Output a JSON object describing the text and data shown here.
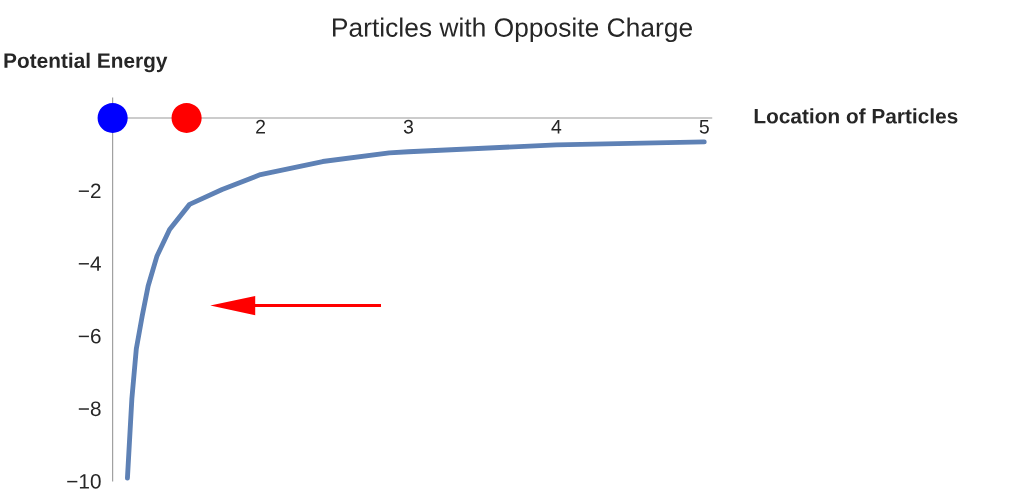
{
  "chart_data": {
    "type": "line",
    "title": "Particles with Opposite Charge",
    "xlabel": "Location of Particles",
    "ylabel": "Potential Energy",
    "xlim": [
      1,
      5.05
    ],
    "ylim": [
      -10,
      0.55
    ],
    "xticks": [
      2,
      3,
      4,
      5
    ],
    "yticks": [
      {
        "value": -10,
        "label": "−10"
      },
      {
        "value": -8,
        "label": "−8"
      },
      {
        "value": -6,
        "label": "−6"
      },
      {
        "value": -4,
        "label": "−4"
      },
      {
        "value": -2,
        "label": "−2"
      }
    ],
    "grid": false,
    "series": [
      {
        "color": "#5e81b5",
        "x": [
          1.1,
          1.13,
          1.16,
          1.2,
          1.24,
          1.3,
          1.385,
          1.52,
          1.74,
          2.0,
          2.42,
          2.87,
          3.0,
          4.0,
          5.0
        ],
        "values": [
          -9.92,
          -7.73,
          -6.36,
          -5.45,
          -4.63,
          -3.8,
          -3.07,
          -2.38,
          -1.97,
          -1.56,
          -1.2,
          -0.96,
          -0.93,
          -0.74,
          -0.66
        ]
      },
      {
        "type": "scatter",
        "color": "#0000ff",
        "marker": "circle",
        "x": [
          1.0
        ],
        "values": [
          0
        ]
      },
      {
        "type": "scatter",
        "color": "#ff0000",
        "marker": "circle",
        "x": [
          1.5
        ],
        "values": [
          0
        ]
      }
    ]
  }
}
